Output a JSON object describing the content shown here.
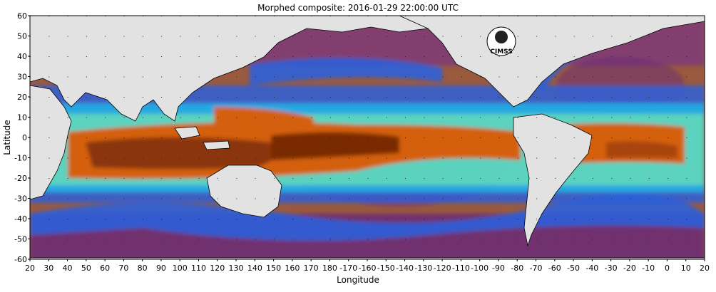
{
  "title": "Morphed composite: 2016-01-29 22:00:00 UTC",
  "axes": {
    "x_label": "Longitude",
    "y_label": "Latitude",
    "x_ticks": [
      "20",
      "30",
      "40",
      "50",
      "60",
      "70",
      "80",
      "90",
      "100",
      "110",
      "120",
      "130",
      "140",
      "150",
      "160",
      "170",
      "180",
      "-170",
      "-160",
      "-150",
      "-140",
      "-130",
      "-120",
      "-110",
      "-100",
      "-90",
      "-80",
      "-70",
      "-60",
      "-50",
      "-40",
      "-30",
      "-20",
      "-10",
      "0",
      "10",
      "20"
    ],
    "y_ticks": [
      "60",
      "50",
      "40",
      "30",
      "20",
      "10",
      "0",
      "-10",
      "-20",
      "-30",
      "-40",
      "-50",
      "-60"
    ]
  },
  "logo": {
    "text": "CIMSS"
  },
  "colors": {
    "land": "#e2e2e2",
    "dry": "#6a2a78",
    "very_dry": "#8a3c86",
    "low_moist": "#2e5fd9",
    "mid_moist": "#21b5e6",
    "high_moist": "#7ef0a6",
    "very_high": "#d46010",
    "max": "#7a2a00",
    "background_ocean": "#a1603e"
  }
}
